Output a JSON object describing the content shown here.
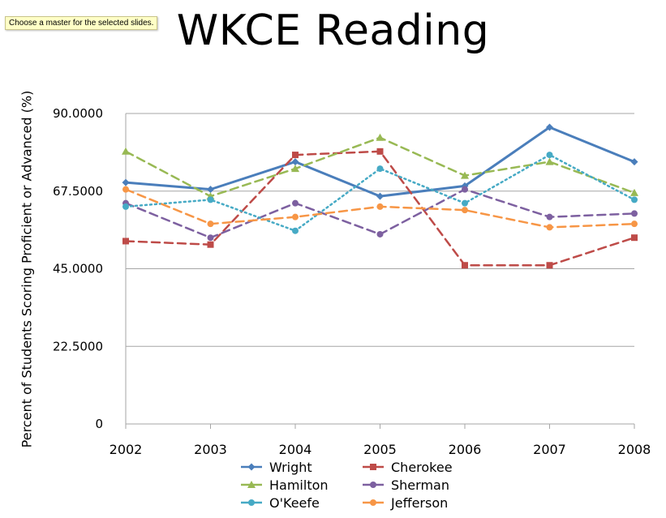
{
  "tooltip": "Choose a master for the selected slides.",
  "chart_data": {
    "type": "line",
    "title": "WKCE Reading",
    "xlabel": "",
    "ylabel": "Percent of Students Scoring Proficient or Advanced (%)",
    "categories": [
      "2002",
      "2003",
      "2004",
      "2005",
      "2006",
      "2007",
      "2008"
    ],
    "ylim": [
      0,
      90
    ],
    "yticks": [
      "0",
      "22.5000",
      "45.0000",
      "67.5000",
      "90.0000"
    ],
    "ytick_values": [
      0,
      22.5,
      45,
      67.5,
      90
    ],
    "grid": true,
    "legend_position": "bottom",
    "series": [
      {
        "name": "Wright",
        "values": [
          70,
          68,
          76,
          66,
          69,
          86,
          76
        ],
        "color": "#4a7ebb",
        "marker": "diamond",
        "dash": "solid"
      },
      {
        "name": "Cherokee",
        "values": [
          53,
          52,
          78,
          79,
          46,
          46,
          54
        ],
        "color": "#be4b48",
        "marker": "square",
        "dash": "dash"
      },
      {
        "name": "Hamilton",
        "values": [
          79,
          66,
          74,
          83,
          72,
          76,
          67
        ],
        "color": "#98b954",
        "marker": "triangle",
        "dash": "dash"
      },
      {
        "name": "Sherman",
        "values": [
          64,
          54,
          64,
          55,
          68,
          60,
          61
        ],
        "color": "#7d60a0",
        "marker": "circle",
        "dash": "dash"
      },
      {
        "name": "O'Keefe",
        "values": [
          63,
          65,
          56,
          74,
          64,
          78,
          65
        ],
        "color": "#46aac5",
        "marker": "circle",
        "dash": "dot"
      },
      {
        "name": "Jefferson",
        "values": [
          68,
          58,
          60,
          63,
          62,
          57,
          58
        ],
        "color": "#f79646",
        "marker": "circle",
        "dash": "dash"
      }
    ]
  }
}
